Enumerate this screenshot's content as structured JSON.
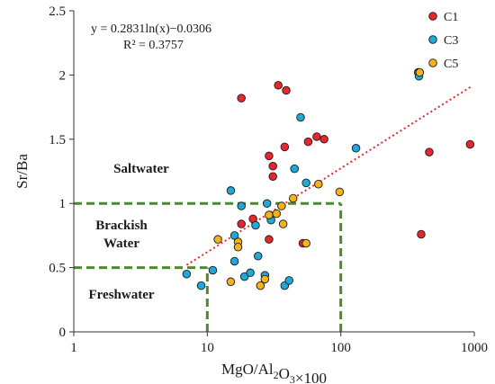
{
  "chart_data": {
    "type": "scatter",
    "x_scale": "log",
    "xlim": [
      1,
      1000
    ],
    "ylim": [
      0,
      2.5
    ],
    "x_ticks": [
      1,
      10,
      100,
      1000
    ],
    "x_tick_labels": [
      "1",
      "10",
      "100",
      "1000"
    ],
    "y_ticks": [
      0,
      0.5,
      1,
      1.5,
      2,
      2.5
    ],
    "y_tick_labels": [
      "0",
      "0.5",
      "1",
      "1.5",
      "2",
      "2.5"
    ],
    "xlabel": "MgO/Al₂O₃×100",
    "ylabel": "Sr/Ba",
    "grid": false,
    "legend_position": "top-right",
    "series": [
      {
        "name": "C1",
        "color": "#e8262c",
        "points": [
          [
            18,
            1.82
          ],
          [
            34,
            1.92
          ],
          [
            39,
            1.88
          ],
          [
            29,
            1.37
          ],
          [
            31,
            1.29
          ],
          [
            38,
            1.44
          ],
          [
            31,
            1.21
          ],
          [
            57,
            1.48
          ],
          [
            66,
            1.52
          ],
          [
            75,
            1.5
          ],
          [
            18,
            0.84
          ],
          [
            22,
            0.88
          ],
          [
            29,
            0.72
          ],
          [
            52,
            0.69
          ],
          [
            400,
            0.76
          ],
          [
            460,
            1.4
          ],
          [
            930,
            1.46
          ],
          [
            380,
            2.02
          ]
        ]
      },
      {
        "name": "C3",
        "color": "#1fa8d8",
        "points": [
          [
            7,
            0.45
          ],
          [
            9,
            0.36
          ],
          [
            11,
            0.48
          ],
          [
            15,
            1.1
          ],
          [
            16,
            0.75
          ],
          [
            18,
            0.98
          ],
          [
            23,
            0.83
          ],
          [
            24,
            0.59
          ],
          [
            16,
            0.55
          ],
          [
            19,
            0.43
          ],
          [
            21,
            0.46
          ],
          [
            27,
            0.44
          ],
          [
            28,
            1.0
          ],
          [
            30,
            0.87
          ],
          [
            38,
            0.36
          ],
          [
            41,
            0.4
          ],
          [
            45,
            1.27
          ],
          [
            50,
            1.67
          ],
          [
            55,
            1.16
          ],
          [
            130,
            1.43
          ],
          [
            385,
            1.99
          ]
        ]
      },
      {
        "name": "C5",
        "color": "#f5b21b",
        "points": [
          [
            12,
            0.72
          ],
          [
            15,
            0.39
          ],
          [
            17,
            0.7
          ],
          [
            17,
            0.66
          ],
          [
            25,
            0.36
          ],
          [
            27,
            0.41
          ],
          [
            29,
            0.91
          ],
          [
            33,
            0.92
          ],
          [
            37,
            0.84
          ],
          [
            36,
            0.98
          ],
          [
            44,
            1.04
          ],
          [
            55,
            0.69
          ],
          [
            68,
            1.15
          ],
          [
            98,
            1.09
          ],
          [
            390,
            2.02
          ]
        ]
      }
    ],
    "trendline": {
      "type": "logarithmic",
      "a": 0.2831,
      "b": -0.0306,
      "x_range": [
        7,
        950
      ],
      "color": "#e8262c",
      "style": "dotted"
    },
    "equation_text": "y = 0.2831ln(x)−0.0306",
    "r2_text": "R² = 0.3757",
    "region_labels": [
      {
        "text": "Saltwater",
        "x": 30,
        "y": 1.24
      },
      {
        "text": "Brackish",
        "x": 27,
        "y": 0.8
      },
      {
        "text": "Water",
        "x": 27,
        "y": 0.66
      },
      {
        "text": "Freshwater",
        "x": 27,
        "y": 0.26
      }
    ],
    "boundaries": {
      "color": "#4d8a2e",
      "horizontal": [
        {
          "y": 1.0,
          "x_from": 1,
          "x_to": 100
        },
        {
          "y": 0.5,
          "x_from": 1,
          "x_to": 10
        }
      ],
      "vertical": [
        {
          "x": 10,
          "y_from": 0,
          "y_to": 0.5
        },
        {
          "x": 100,
          "y_from": 0,
          "y_to": 1.0
        }
      ]
    }
  }
}
